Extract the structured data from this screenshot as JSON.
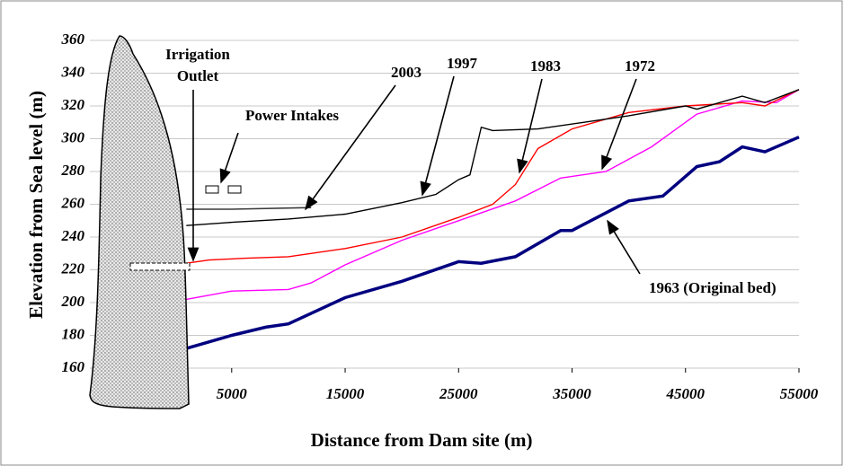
{
  "chart_data": {
    "type": "line",
    "x_label": "Distance from Dam site (m)",
    "y_label": "Elevation from Sea level (m)",
    "xlim": [
      -7500,
      55000
    ],
    "xticks": [
      5000,
      15000,
      25000,
      35000,
      45000,
      55000
    ],
    "ylim": [
      160,
      360
    ],
    "yticks": [
      160,
      180,
      200,
      220,
      240,
      260,
      280,
      300,
      320,
      340,
      360
    ],
    "grid": true,
    "annotations": [
      {
        "text_lines": [
          "Irrigation",
          "Outlet"
        ]
      },
      {
        "text_lines": [
          "Power Intakes"
        ]
      }
    ],
    "series": [
      {
        "name": "1963 (Original bed)",
        "color": "#000080",
        "x": [
          1000,
          5000,
          8000,
          10000,
          15000,
          20000,
          25000,
          27000,
          30000,
          34000,
          35000,
          40000,
          43000,
          46000,
          48000,
          50000,
          52000,
          55000
        ],
        "values": [
          172,
          180,
          185,
          187,
          203,
          213,
          225,
          224,
          228,
          244,
          244,
          262,
          265,
          283,
          286,
          295,
          292,
          301
        ]
      },
      {
        "name": "1972",
        "color": "#ff00ff",
        "x": [
          1000,
          5000,
          10000,
          12000,
          15000,
          20000,
          25000,
          30000,
          34000,
          38000,
          42000,
          46000,
          50000,
          53000,
          55000
        ],
        "values": [
          202,
          207,
          208,
          212,
          223,
          238,
          250,
          262,
          276,
          280,
          295,
          315,
          323,
          322,
          330
        ]
      },
      {
        "name": "1983",
        "color": "#ff0000",
        "x": [
          1000,
          3000,
          6000,
          10000,
          15000,
          20000,
          25000,
          28000,
          30000,
          32000,
          35000,
          40000,
          45000,
          50000,
          52000,
          55000
        ],
        "values": [
          224,
          226,
          227,
          228,
          233,
          240,
          252,
          260,
          272,
          294,
          306,
          316,
          320,
          322,
          320,
          330
        ]
      },
      {
        "name": "1997",
        "color": "#000000",
        "x": [
          1000,
          5000,
          10000,
          15000,
          20000,
          23000,
          25000,
          26000,
          27000,
          28000,
          32000,
          36000,
          40000,
          45000,
          46000,
          48000,
          50000,
          52000,
          55000
        ],
        "values": [
          247,
          249,
          251,
          254,
          261,
          266,
          275,
          278,
          307,
          305,
          306,
          310,
          314,
          320,
          318,
          322,
          326,
          322,
          330
        ]
      },
      {
        "name": "2003",
        "color": "#3a3a3a",
        "x": [
          1000,
          5000,
          12000
        ],
        "values": [
          257,
          257,
          258
        ]
      }
    ]
  }
}
